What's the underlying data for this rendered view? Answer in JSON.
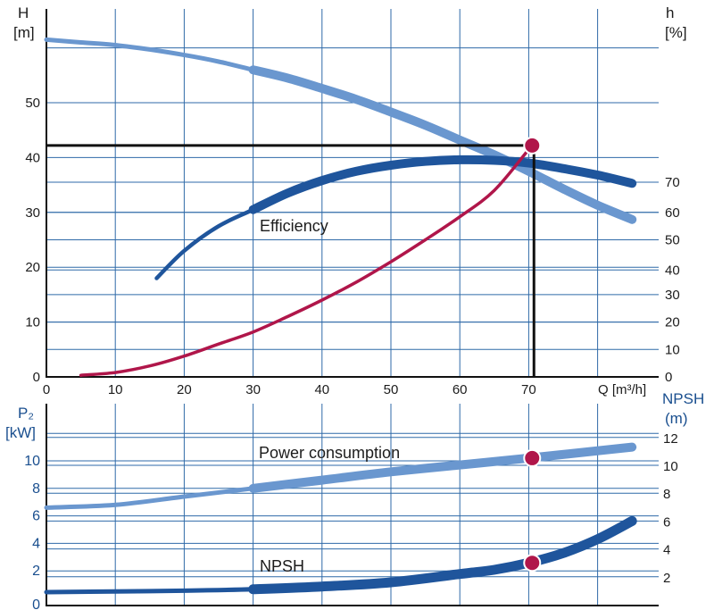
{
  "chart_data": [
    {
      "type": "line",
      "title": "",
      "xlabel": "Q [m³/h]",
      "x_ticks": [
        "0",
        "10",
        "20",
        "30",
        "40",
        "50",
        "60",
        "70"
      ],
      "xlim": [
        0,
        85
      ],
      "left_axis": {
        "label_line1": "H",
        "label_line2": "[m]",
        "ticks": [
          "0",
          "10",
          "20",
          "30",
          "40",
          "50"
        ],
        "ylim": [
          0,
          65
        ]
      },
      "right_axis": {
        "label_line1": "h",
        "label_line2": "[%]",
        "ticks": [
          {
            "label": "0",
            "h": 0
          },
          {
            "label": "10",
            "h": 5
          },
          {
            "label": "20",
            "h": 10
          },
          {
            "label": "30",
            "h": 15
          },
          {
            "label": "40",
            "h": 19.5
          },
          {
            "label": "50",
            "h": 25
          },
          {
            "label": "60",
            "h": 30
          },
          {
            "label": "70",
            "h": 35.5
          }
        ]
      },
      "series": [
        {
          "name": "",
          "color": "#6a97cf",
          "points": [
            [
              0,
              61.5
            ],
            [
              5,
              61
            ],
            [
              10,
              60.5
            ],
            [
              15,
              59.7
            ],
            [
              20,
              58.7
            ],
            [
              25,
              57.5
            ],
            [
              30,
              56
            ],
            [
              35,
              54.5
            ],
            [
              40,
              52.6
            ],
            [
              45,
              50.6
            ],
            [
              50,
              48.3
            ],
            [
              55,
              45.9
            ],
            [
              60,
              43.2
            ],
            [
              65,
              40.5
            ],
            [
              70,
              37.5
            ],
            [
              75,
              34.3
            ],
            [
              80,
              31.3
            ],
            [
              85,
              28.7
            ]
          ]
        },
        {
          "name": "Efficiency",
          "color": "#1f559c",
          "points": [
            [
              16,
              18
            ],
            [
              20,
              23
            ],
            [
              25,
              27.5
            ],
            [
              30,
              30.5
            ],
            [
              35,
              33.5
            ],
            [
              40,
              35.8
            ],
            [
              45,
              37.5
            ],
            [
              50,
              38.6
            ],
            [
              55,
              39.3
            ],
            [
              60,
              39.6
            ],
            [
              65,
              39.5
            ],
            [
              70,
              39
            ],
            [
              75,
              38
            ],
            [
              80,
              36.8
            ],
            [
              85,
              35.3
            ]
          ]
        },
        {
          "name": "",
          "color": "#b0164a",
          "points": [
            [
              5,
              0.3
            ],
            [
              10,
              0.8
            ],
            [
              15,
              2
            ],
            [
              20,
              3.8
            ],
            [
              25,
              6
            ],
            [
              30,
              8.2
            ],
            [
              35,
              11
            ],
            [
              40,
              14
            ],
            [
              45,
              17.3
            ],
            [
              50,
              21
            ],
            [
              55,
              25
            ],
            [
              60,
              29.2
            ],
            [
              65,
              34
            ],
            [
              70,
              41.5
            ]
          ]
        }
      ],
      "annotations": [
        {
          "text": "Efficiency",
          "x": 31,
          "y": 27
        }
      ],
      "operating_point": {
        "q": 70.5,
        "h": 42.2,
        "color": "#b0164a"
      },
      "grid": true
    },
    {
      "type": "line",
      "title": "",
      "xlabel": "",
      "xlim": [
        0,
        85
      ],
      "left_axis": {
        "label_line1": "P₂",
        "label_line2": "[kW]",
        "ticks": [
          "0",
          "2",
          "4",
          "6",
          "8",
          "10"
        ],
        "ylim": [
          0,
          13
        ]
      },
      "right_axis": {
        "label_line1": "NPSH",
        "label_line2": "(m)",
        "ticks": [
          "2",
          "4",
          "6",
          "8",
          "10",
          "12"
        ]
      },
      "series": [
        {
          "name": "Power consumption",
          "color": "#6a97cf",
          "points": [
            [
              0,
              6.6
            ],
            [
              10,
              6.8
            ],
            [
              20,
              7.4
            ],
            [
              30,
              8
            ],
            [
              40,
              8.6
            ],
            [
              50,
              9.2
            ],
            [
              60,
              9.7
            ],
            [
              70,
              10.2
            ],
            [
              85,
              11
            ]
          ]
        },
        {
          "name": "NPSH",
          "color": "#1f559c",
          "points": [
            [
              0,
              0.9
            ],
            [
              10,
              0.95
            ],
            [
              20,
              1
            ],
            [
              30,
              1.1
            ],
            [
              40,
              1.3
            ],
            [
              50,
              1.6
            ],
            [
              60,
              2.2
            ],
            [
              65,
              2.5
            ],
            [
              70,
              3
            ],
            [
              75,
              3.7
            ],
            [
              80,
              4.7
            ],
            [
              85,
              6
            ]
          ]
        }
      ],
      "annotations": [
        {
          "text": "Power consumption",
          "x": 31,
          "y": 10.8
        },
        {
          "text": "NPSH",
          "x": 31,
          "y": 2.4
        }
      ],
      "markers": [
        {
          "q": 70.5,
          "value": 10.2,
          "color": "#b0164a"
        },
        {
          "q": 70.5,
          "value": 3.0,
          "color": "#b0164a"
        }
      ],
      "grid": true
    }
  ]
}
